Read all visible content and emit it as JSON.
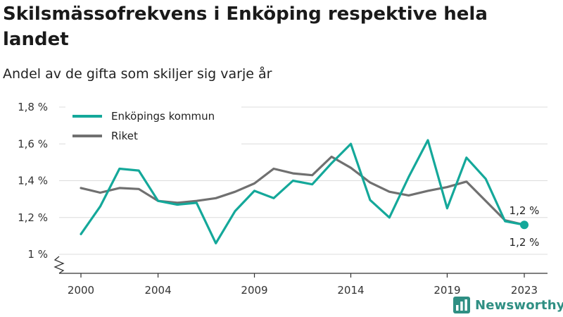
{
  "title": "Skilsmässofrekvens i Enköping respektive hela landet",
  "subtitle": "Andel av de gifta som skiljer sig varje år",
  "brand": "Newsworthy",
  "chart_data": {
    "type": "line",
    "title": "Skilsmässofrekvens i Enköping respektive hela landet",
    "subtitle": "Andel av de gifta som skiljer sig varje år",
    "x": [
      2000,
      2001,
      2002,
      2003,
      2004,
      2005,
      2006,
      2007,
      2008,
      2009,
      2010,
      2011,
      2012,
      2013,
      2014,
      2015,
      2016,
      2017,
      2018,
      2019,
      2020,
      2021,
      2022,
      2023
    ],
    "x_tick_values": [
      2000,
      2004,
      2009,
      2014,
      2019,
      2023
    ],
    "x_tick_labels": [
      "2000",
      "2004",
      "2009",
      "2014",
      "2019",
      "2023"
    ],
    "y_tick_values": [
      1.0,
      1.2,
      1.4,
      1.6,
      1.8
    ],
    "y_tick_labels": [
      "1 %",
      "1,2 %",
      "1,4 %",
      "1,6 %",
      "1,8 %"
    ],
    "ylim": [
      1.0,
      1.8
    ],
    "grid": true,
    "legend_position": "top-left",
    "series": [
      {
        "name": "Enköpings kommun",
        "color": "#14a89a",
        "values": [
          1.11,
          1.26,
          1.465,
          1.455,
          1.29,
          1.27,
          1.28,
          1.06,
          1.235,
          1.345,
          1.305,
          1.4,
          1.38,
          1.495,
          1.6,
          1.295,
          1.2,
          1.42,
          1.62,
          1.25,
          1.525,
          1.41,
          1.18,
          1.16
        ]
      },
      {
        "name": "Riket",
        "color": "#707070",
        "values": [
          1.36,
          1.335,
          1.36,
          1.355,
          1.29,
          1.28,
          1.29,
          1.305,
          1.34,
          1.385,
          1.465,
          1.44,
          1.43,
          1.53,
          1.47,
          1.39,
          1.34,
          1.32,
          1.345,
          1.365,
          1.395,
          1.29,
          1.185,
          1.16
        ]
      }
    ],
    "end_labels": [
      "1,2 %",
      "1,2 %"
    ]
  }
}
